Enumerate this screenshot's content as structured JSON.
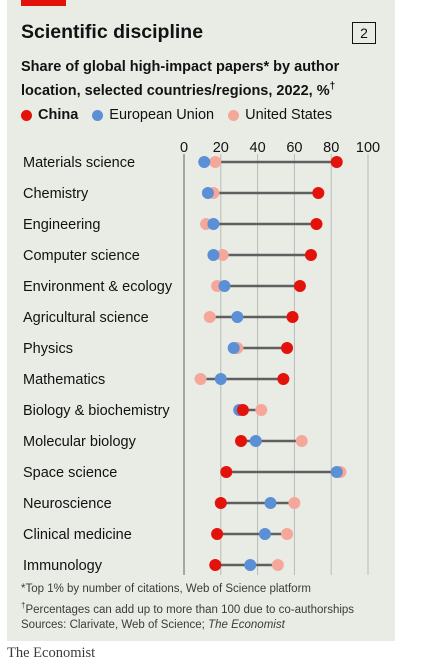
{
  "header": {
    "title": "Scientific discipline",
    "badge": "2",
    "subtitle": "Share of global high-impact papers* by author location, selected countries/regions, 2022, %",
    "subtitle_mark": "†"
  },
  "legend": {
    "china": "China",
    "eu": "European Union",
    "us": "United States"
  },
  "colors": {
    "china": "#e3120b",
    "eu": "#5b8fd6",
    "us": "#f5a89a",
    "connector": "#5f5f5f",
    "background": "#e9ece5",
    "brand_red": "#e3120b"
  },
  "footnotes": {
    "note1": "*Top 1% by number of citations, Web of Science platform",
    "note2": "Percentages can add up to more than 100 due to co-authorships",
    "note2_mark": "†",
    "sources_prefix": "Sources: Clarivate, Web of Science; ",
    "sources_italic": "The Economist"
  },
  "brand": "The Economist",
  "chart_data": {
    "type": "scatter",
    "subtype": "dot-plot",
    "x_ticks": [
      0,
      20,
      40,
      60,
      80,
      100
    ],
    "xlim": [
      0,
      100
    ],
    "grid": true,
    "categories": [
      "Materials science",
      "Chemistry",
      "Engineering",
      "Computer science",
      "Environment & ecology",
      "Agricultural science",
      "Physics",
      "Mathematics",
      "Biology & biochemistry",
      "Molecular biology",
      "Space science",
      "Neuroscience",
      "Clinical medicine",
      "Immunology"
    ],
    "series": [
      {
        "name": "China",
        "key": "china",
        "values": [
          83,
          73,
          72,
          69,
          63,
          59,
          56,
          54,
          32,
          31,
          23,
          20,
          18,
          17
        ]
      },
      {
        "name": "European Union",
        "key": "eu",
        "values": [
          11,
          13,
          16,
          16,
          22,
          29,
          27,
          20,
          30,
          39,
          83,
          47,
          44,
          36
        ]
      },
      {
        "name": "United States",
        "key": "us",
        "values": [
          17,
          16,
          12,
          21,
          18,
          14,
          29,
          9,
          42,
          64,
          85,
          60,
          56,
          51
        ]
      }
    ]
  }
}
